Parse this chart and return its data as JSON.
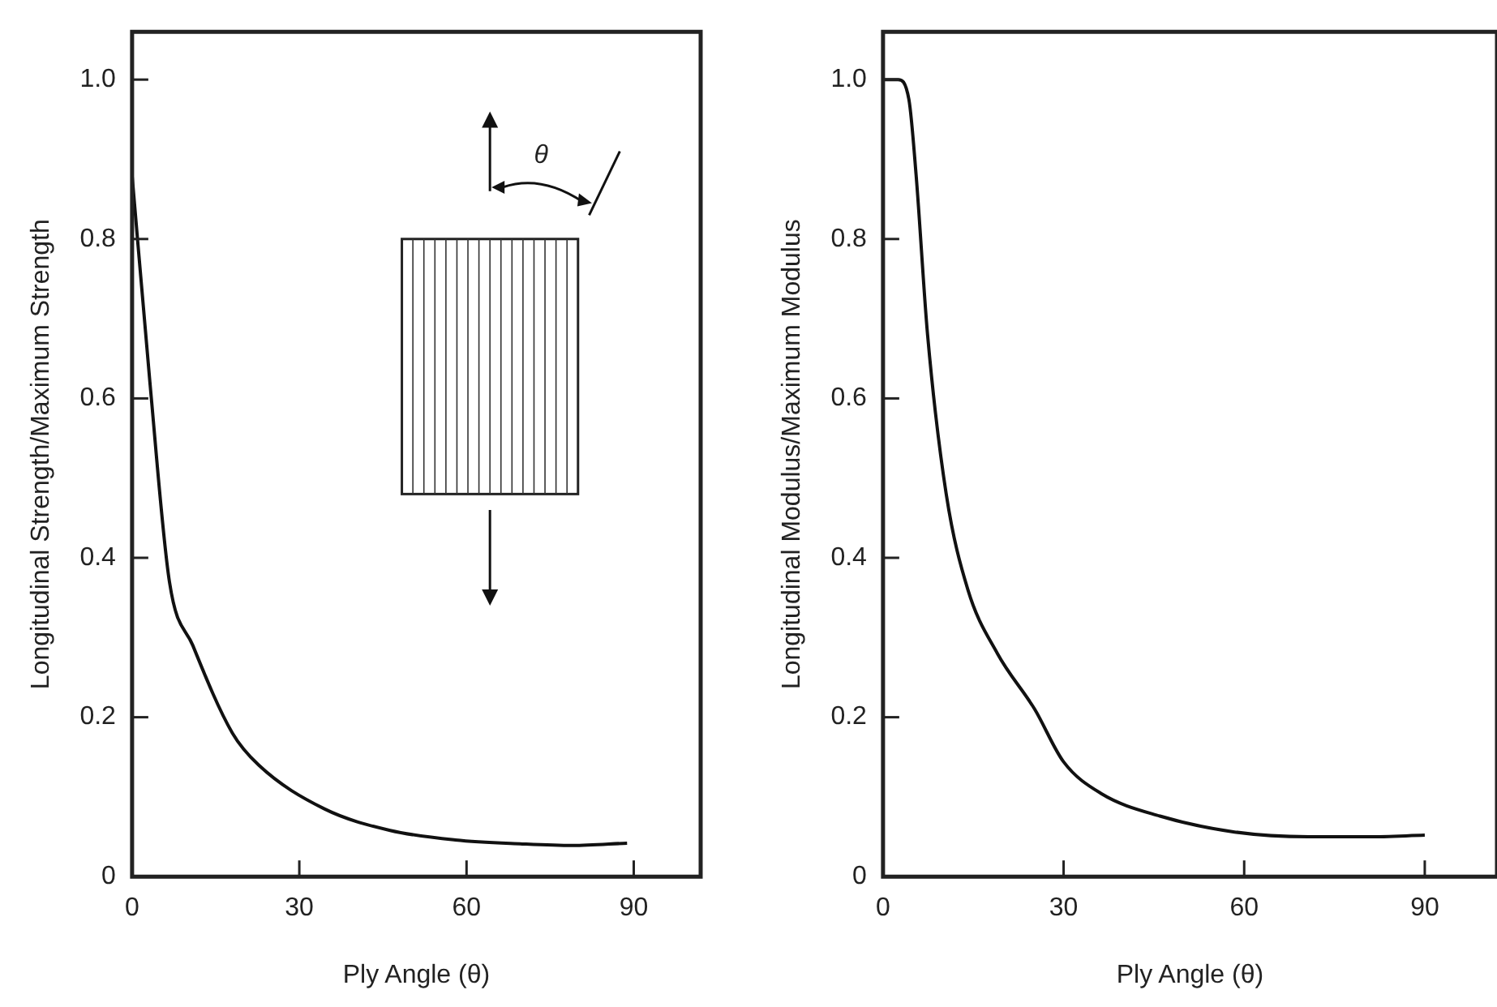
{
  "chart_data": [
    {
      "type": "line",
      "xlabel": "Ply Angle (θ)",
      "ylabel": "Longitudinal Strength/Maximum Strength",
      "annotations": [
        "θ"
      ],
      "x": [
        0,
        3.2,
        6.7,
        10.9,
        18,
        22.7,
        34.5,
        46.3,
        58,
        70,
        79,
        88.8
      ],
      "series": [
        {
          "color": "#111111",
          "values": [
            0.88,
            0.62,
            0.37,
            0.29,
            0.18,
            0.14,
            0.085,
            0.058,
            0.046,
            0.041,
            0.039,
            0.042
          ]
        }
      ],
      "xlim": [
        0,
        102
      ],
      "ylim": [
        0,
        1.06
      ],
      "xticks": [
        0,
        30,
        60,
        90
      ],
      "yticks": [
        0,
        0.2,
        0.4,
        0.6,
        0.8,
        {
          "value": 1,
          "label": "1.0"
        }
      ],
      "grid": false,
      "legend": false,
      "marker": "none",
      "line_style": "solid"
    },
    {
      "type": "line",
      "xlabel": "Ply Angle (θ)",
      "ylabel": "Longitudinal Modulus/Maximum Modulus",
      "x": [
        0,
        2.5,
        4.3,
        5.5,
        7.4,
        10.5,
        14.1,
        19,
        25.2,
        30,
        36.3,
        46,
        58.4,
        70.7,
        80.6,
        90
      ],
      "series": [
        {
          "color": "#111111",
          "values": [
            1,
            1,
            0.975,
            0.88,
            0.68,
            0.48,
            0.36,
            0.28,
            0.21,
            0.144,
            0.104,
            0.076,
            0.056,
            0.05,
            0.05,
            0.052
          ]
        }
      ],
      "xlim": [
        0,
        102
      ],
      "ylim": [
        0,
        1.06
      ],
      "xticks": [
        0,
        30,
        60,
        90
      ],
      "yticks": [
        0,
        0.2,
        0.4,
        0.6,
        0.8,
        {
          "value": 1,
          "label": "1.0"
        }
      ],
      "grid": false,
      "legend": false,
      "marker": "none",
      "line_style": "solid"
    }
  ]
}
